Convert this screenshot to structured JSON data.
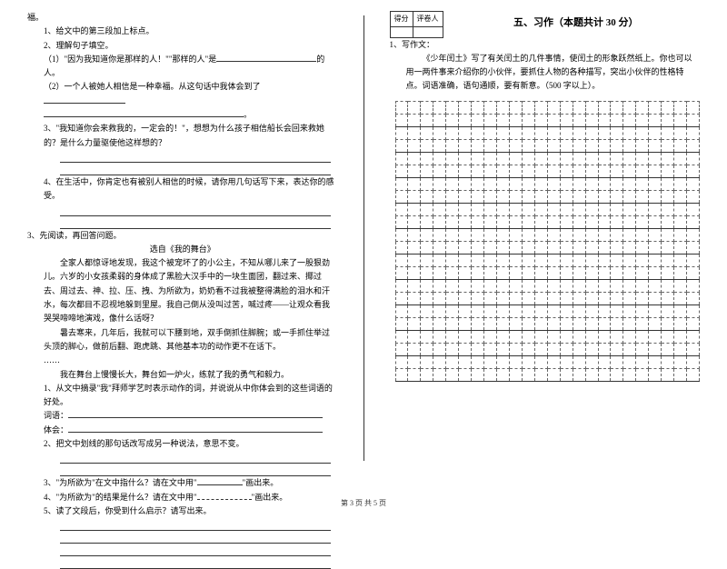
{
  "left": {
    "line0": "福。",
    "q1": "1、给文中的第三段加上标点。",
    "q2": "2、理解句子填空。",
    "q2a_pre": "（1）\"因为我知道你是那样的人！\"\"那样的人\"是",
    "q2a_post": "的人。",
    "q2b_pre": "（2）一个人被她人相信是一种幸福。从这句话中我体会到了",
    "q2b_post": "。",
    "q3": "3、\"我知道你会来救我的，一定会的！\"，想想为什么孩子相信船长会回来救她的？是什么力量驱使他这样想的？",
    "q4": "4、在生活中，你肯定也有被别人相信的时候，请你用几句话写下来，表达你的感受。",
    "p3_title": "3、先阅读，再回答问题。",
    "p3_subtitle": "选自《我的舞台》",
    "p3_para1": "全家人都惊讶地发现，我这个被宠坏了的小公主，不知从哪儿来了一股狠劲儿。六岁的小女孩柔弱的身体成了黑脸大汉手中的一块生面团，翻过来、揶过去、周过去、神、拉、压、拽、为所欲为，奶奶看不过我被整得满脸的泪水和汗水，每次都目不忍视地躲到里屋。我自己倒从没叫过苦，喊过疼——让观众看我哭哭啼啼地演戏，像什么话呀？",
    "p3_para2": "暑去寒来，几年后，我就可以下腰到地，双手倒抓住脚腕；或一手抓住举过头顶的脚心，做前后翻、跑虎跳、其他基本功的动作更不在话下。",
    "p3_dots": "……",
    "p3_para3": "我在舞台上慢慢长大，舞台如一炉火，练就了我的勇气和毅力。",
    "p3_q1": "1、从文中摘录\"我\"拜师学艺时表示动作的词，并说说从中你体会到的这些词语的好处。",
    "p3_q1_words": "词语：",
    "p3_q1_feel": "体会：",
    "p3_q2": "2、把文中划线的那句话改写成另一种说法，意思不变。",
    "p3_q3a": "3、\"为所欲为\"在文中指什么？请在文中用\"",
    "p3_q3b": "\"画出来。",
    "p3_q4a": "4、\"为所欲为\"的结果是什么？请在文中用\"",
    "p3_q4b": "\"画出来。",
    "p3_q5": "5、读了文段后，你受到什么启示？请写出来。"
  },
  "right": {
    "score_label1": "得分",
    "score_label2": "评卷人",
    "section_title": "五、习作（本题共计 30 分）",
    "q1_num": "1、写作文：",
    "q1_body": "《少年闰土》写了有关闰土的几件事情，使闰土的形象跃然纸上。你也可以用一两件事来介绍你的小伙伴，要抓住人物的各种描写，突出小伙伴的性格特点。词语准确，语句通顺，要有新意。（500 字以上）。",
    "grid": {
      "cols": 24,
      "rows": 22
    }
  },
  "footer": "第 3 页 共 5 页"
}
